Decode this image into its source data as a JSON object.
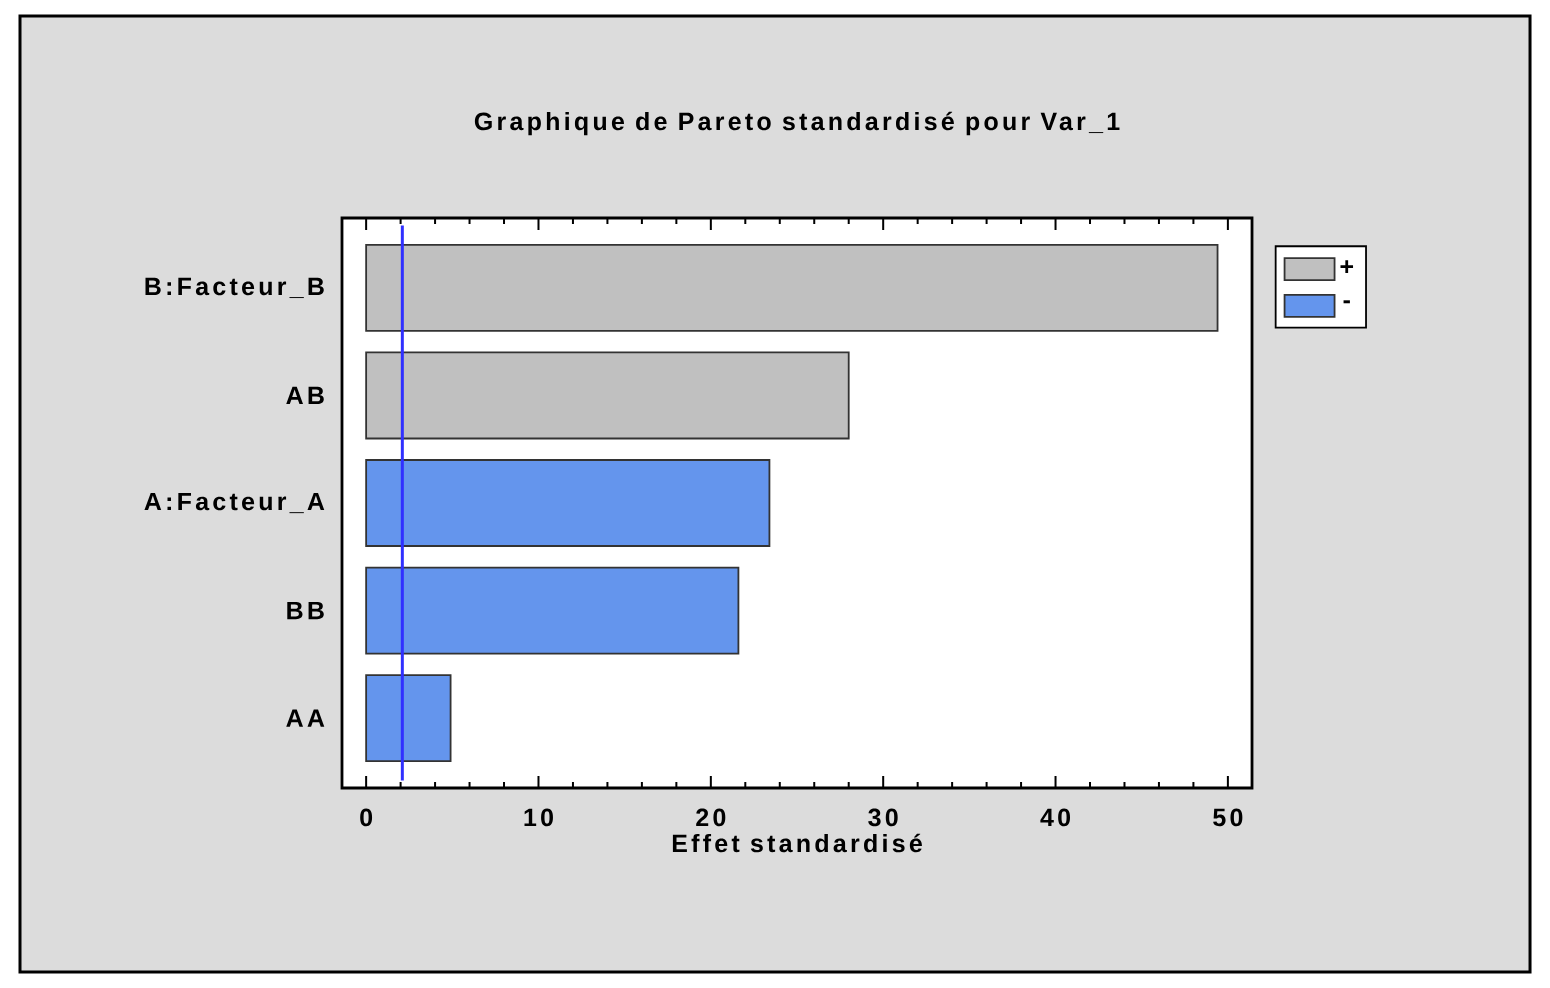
{
  "chart_data": {
    "type": "bar",
    "orientation": "horizontal",
    "title": "Graphique de Pareto standardisé pour Var_1",
    "xlabel": "Effet standardisé",
    "categories": [
      "B:Facteur_B",
      "AB",
      "A:Facteur_A",
      "BB",
      "AA"
    ],
    "series": [
      {
        "name": "+",
        "color": "#c0c0c0",
        "values": [
          49.4,
          28.0,
          null,
          null,
          null
        ]
      },
      {
        "name": "-",
        "color": "#6495ed",
        "values": [
          null,
          null,
          23.4,
          21.6,
          4.9
        ]
      }
    ],
    "xlim": [
      -1.4,
      51.4
    ],
    "xticks": [
      0,
      {
        "value": 2,
        "label": null
      },
      {
        "value": 4,
        "label": null
      },
      {
        "value": 6,
        "label": null
      },
      {
        "value": 8,
        "label": null
      },
      10,
      {
        "value": 12,
        "label": null
      },
      {
        "value": 14,
        "label": null
      },
      {
        "value": 16,
        "label": null
      },
      {
        "value": 18,
        "label": null
      },
      20,
      {
        "value": 22,
        "label": null
      },
      {
        "value": 24,
        "label": null
      },
      {
        "value": 26,
        "label": null
      },
      {
        "value": 28,
        "label": null
      },
      30,
      {
        "value": 32,
        "label": null
      },
      {
        "value": 34,
        "label": null
      },
      {
        "value": 36,
        "label": null
      },
      {
        "value": 38,
        "label": null
      },
      40,
      {
        "value": 42,
        "label": null
      },
      {
        "value": 44,
        "label": null
      },
      {
        "value": 46,
        "label": null
      },
      {
        "value": 48,
        "label": null
      },
      50
    ],
    "ref_lines": [
      {
        "axis": "x",
        "value": 2.1,
        "color": "#3030ff"
      }
    ],
    "legend": "right"
  }
}
